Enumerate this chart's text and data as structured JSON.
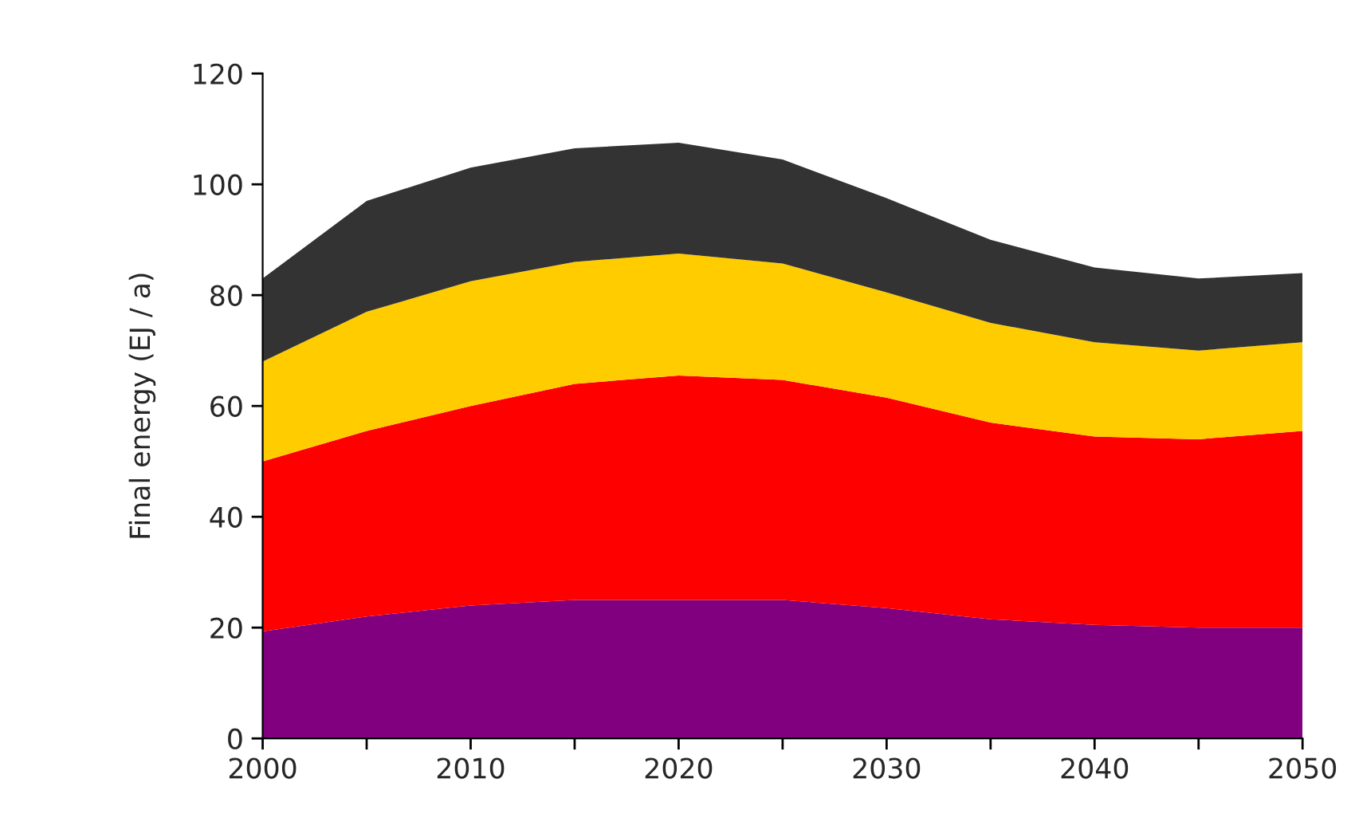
{
  "chart_data": {
    "type": "area",
    "stacked": true,
    "ylabel": "Final energy (EJ / a)",
    "x": [
      2000,
      2005,
      2010,
      2015,
      2020,
      2025,
      2030,
      2035,
      2040,
      2045,
      2050
    ],
    "series": [
      {
        "color": "#800080",
        "values": [
          19.3,
          22,
          24,
          25,
          25,
          25,
          23.5,
          21.5,
          20.5,
          20,
          20
        ]
      },
      {
        "color": "#ff0000",
        "values": [
          30.7,
          33.5,
          36,
          39,
          40.5,
          39.7,
          38,
          35.5,
          34,
          34,
          35.5
        ]
      },
      {
        "color": "#ffcc00",
        "values": [
          18,
          21.5,
          22.5,
          22,
          22,
          21,
          19,
          18,
          17,
          16,
          16
        ]
      },
      {
        "color": "#333333",
        "values": [
          15,
          20,
          20.5,
          20.5,
          20,
          18.8,
          17,
          15,
          13.5,
          13,
          12.5
        ]
      }
    ],
    "xlim": [
      2000,
      2050
    ],
    "ylim": [
      0,
      120
    ],
    "xticks": [
      2000,
      {
        "value": 2005,
        "label": null
      },
      2010,
      {
        "value": 2015,
        "label": null
      },
      2020,
      {
        "value": 2025,
        "label": null
      },
      2030,
      {
        "value": 2035,
        "label": null
      },
      2040,
      {
        "value": 2045,
        "label": null
      },
      2050
    ],
    "yticks": [
      0,
      20,
      40,
      60,
      80,
      100,
      120
    ],
    "grid": false,
    "legend": false
  }
}
